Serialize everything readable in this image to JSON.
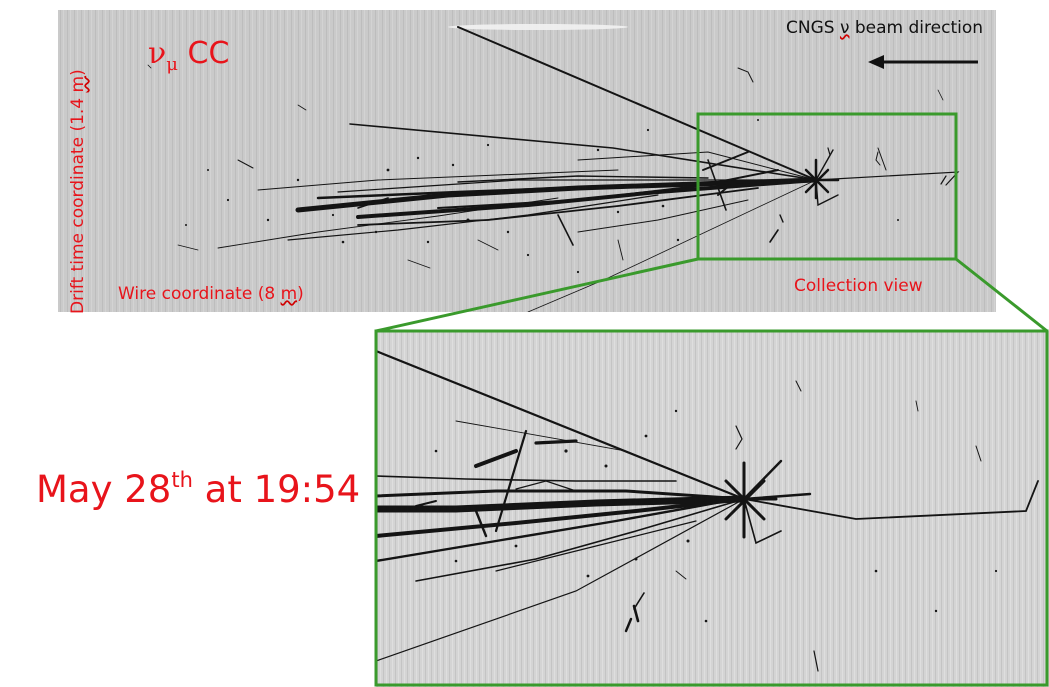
{
  "top_panel": {
    "title_nu": "ν",
    "title_mu": "μ",
    "title_cc": "CC",
    "beam_prefix": "CNGS ",
    "beam_nu": "ν",
    "beam_suffix": " beam direction",
    "drift_prefix": "Drift time coordinate (1.4 ",
    "drift_unit": "m",
    "drift_suffix": ")",
    "wire_prefix": "Wire coordinate (8 ",
    "wire_unit": "m",
    "wire_suffix": ")",
    "collection_label": "Collection view"
  },
  "date": {
    "prefix": "May 28",
    "sup": "th",
    "suffix": " at 19:54"
  },
  "colors": {
    "label_red": "#e8141b",
    "frame_green": "#3a9a2c",
    "detector_gray": "#c9c9c9",
    "track_black": "#141414"
  }
}
